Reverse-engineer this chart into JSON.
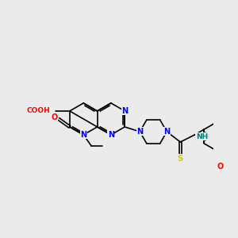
{
  "bg": "#ebebeb",
  "C": "#000000",
  "N": "#0000ff",
  "O": "#ff0000",
  "S": "#cccc00",
  "NH_color": "#008080",
  "lw": 1.2,
  "fs": 7.0
}
